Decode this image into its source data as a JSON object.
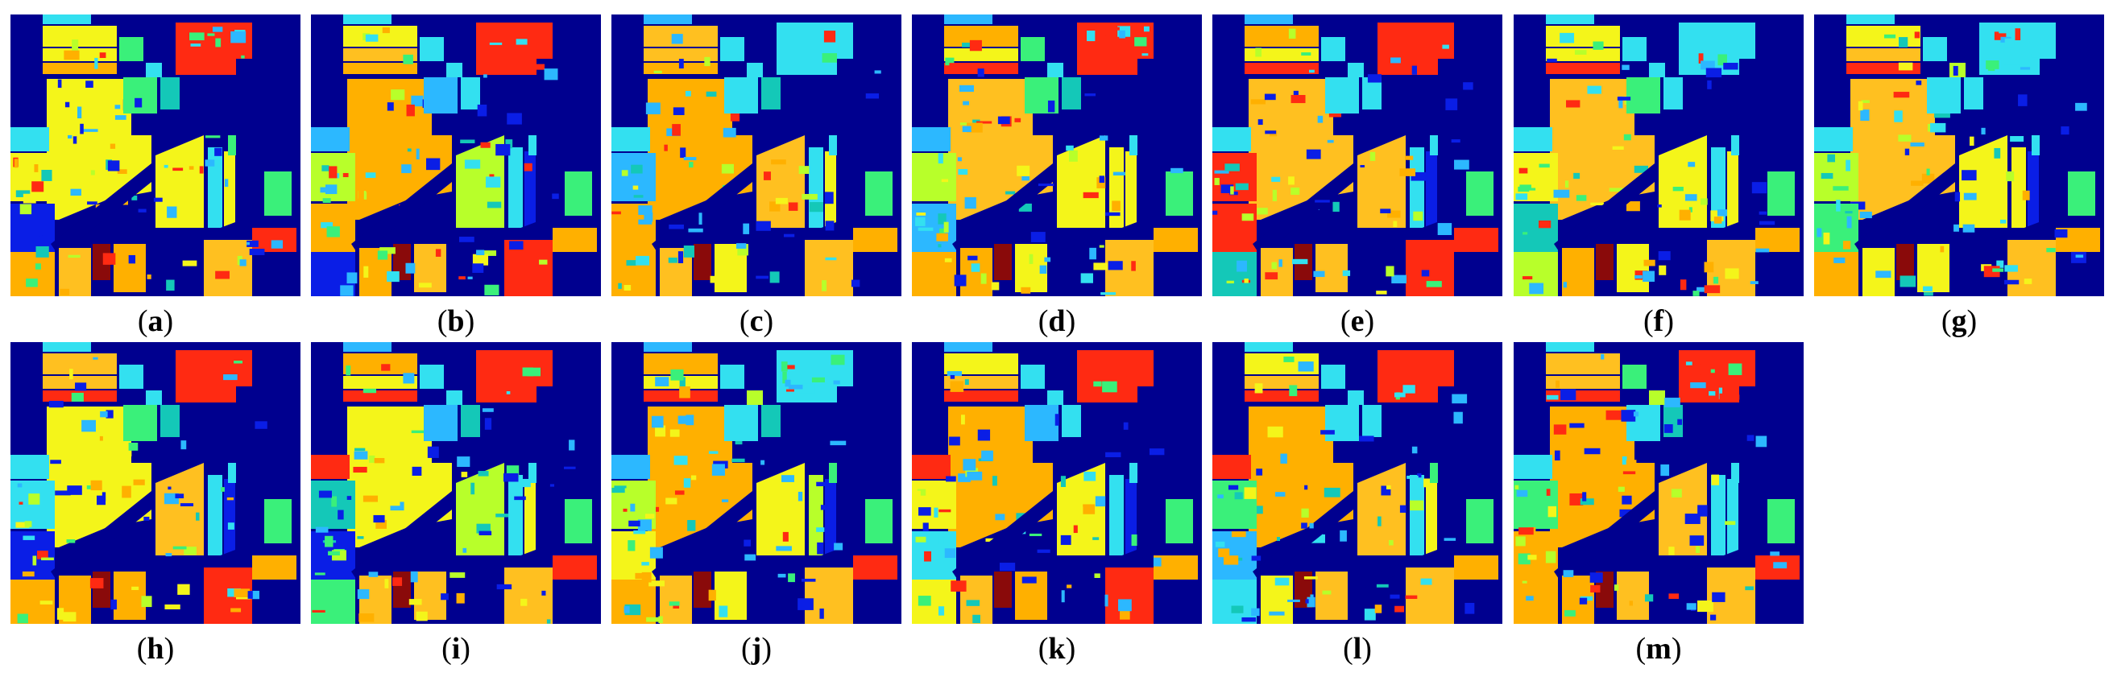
{
  "panels": [
    {
      "label": "a"
    },
    {
      "label": "b"
    },
    {
      "label": "c"
    },
    {
      "label": "d"
    },
    {
      "label": "e"
    },
    {
      "label": "f"
    },
    {
      "label": "g"
    },
    {
      "label": "h"
    },
    {
      "label": "i"
    },
    {
      "label": "j"
    },
    {
      "label": "k"
    },
    {
      "label": "l"
    },
    {
      "label": "m"
    }
  ],
  "colors": {
    "background": "#00008f",
    "blue": "#0a1ee6",
    "cyan": "#33e0f0",
    "sky": "#2cb8ff",
    "green": "#3af07a",
    "lime": "#b8ff2a",
    "yellow": "#f4f51a",
    "orange": "#ffb000",
    "amber": "#ffc020",
    "red": "#ff2a12",
    "darkred": "#8a0a0a",
    "teal": "#14c8b8"
  }
}
